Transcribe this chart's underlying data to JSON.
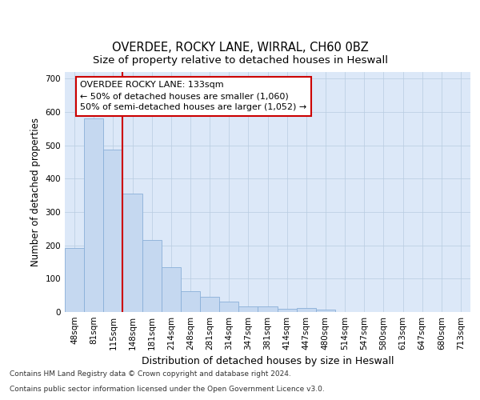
{
  "title1": "OVERDEE, ROCKY LANE, WIRRAL, CH60 0BZ",
  "title2": "Size of property relative to detached houses in Heswall",
  "xlabel": "Distribution of detached houses by size in Heswall",
  "ylabel": "Number of detached properties",
  "categories": [
    "48sqm",
    "81sqm",
    "115sqm",
    "148sqm",
    "181sqm",
    "214sqm",
    "248sqm",
    "281sqm",
    "314sqm",
    "347sqm",
    "381sqm",
    "414sqm",
    "447sqm",
    "480sqm",
    "514sqm",
    "547sqm",
    "580sqm",
    "613sqm",
    "647sqm",
    "680sqm",
    "713sqm"
  ],
  "values": [
    192,
    580,
    487,
    356,
    216,
    134,
    63,
    45,
    31,
    17,
    16,
    9,
    11,
    8,
    0,
    0,
    0,
    0,
    0,
    0,
    0
  ],
  "bar_color": "#c5d8f0",
  "bar_edge_color": "#8ab0d8",
  "vline_color": "#cc0000",
  "annotation_text": "OVERDEE ROCKY LANE: 133sqm\n← 50% of detached houses are smaller (1,060)\n50% of semi-detached houses are larger (1,052) →",
  "annotation_box_color": "#ffffff",
  "annotation_box_edge_color": "#cc0000",
  "ylim": [
    0,
    720
  ],
  "yticks": [
    0,
    100,
    200,
    300,
    400,
    500,
    600,
    700
  ],
  "plot_bg_color": "#dce8f8",
  "footer1": "Contains HM Land Registry data © Crown copyright and database right 2024.",
  "footer2": "Contains public sector information licensed under the Open Government Licence v3.0.",
  "title1_fontsize": 10.5,
  "title2_fontsize": 9.5,
  "tick_fontsize": 7.5,
  "xlabel_fontsize": 9,
  "ylabel_fontsize": 8.5,
  "annotation_fontsize": 8,
  "footer_fontsize": 6.5
}
